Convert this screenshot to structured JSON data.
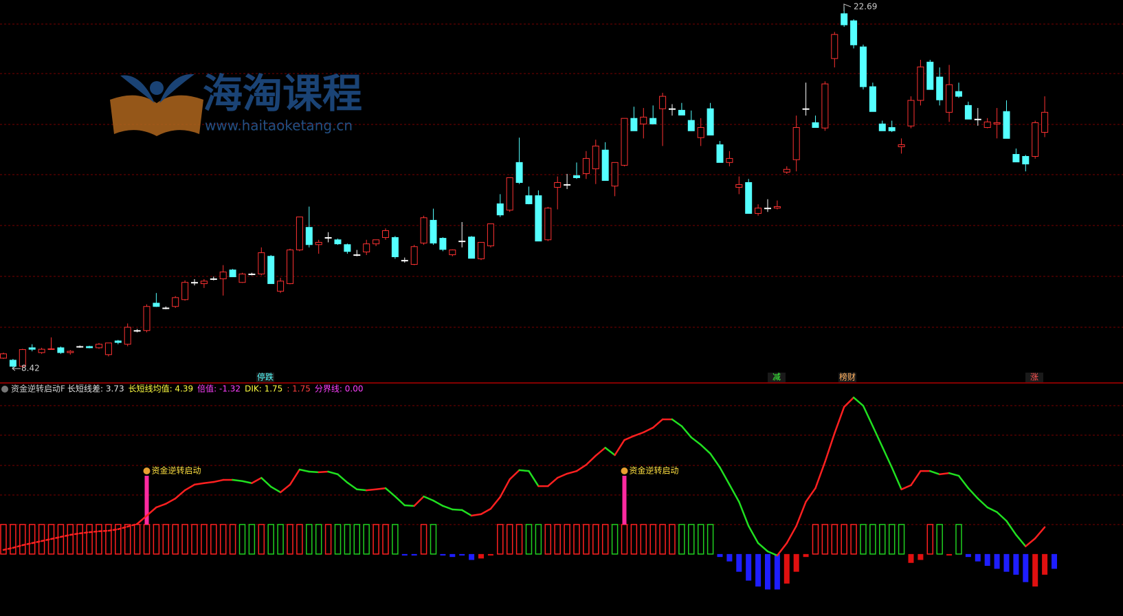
{
  "watermark": {
    "brand": "海淘课程",
    "url": "www.haitaoketang.cn"
  },
  "chart_data": [
    {
      "type": "candlestick",
      "ylim": [
        7.88,
        22.96
      ],
      "up_color": "#ff3232",
      "down_color": "#54ffff",
      "doji_color": "#ffffff",
      "high_label": 22.69,
      "low_label": 8.42,
      "tags": [
        {
          "text": "停跌",
          "color": "#54ffff"
        },
        {
          "text": "减",
          "color": "#3cff3c"
        },
        {
          "text": "榜财",
          "color": "#ffb060"
        },
        {
          "text": "涨",
          "color": "#ff5050"
        }
      ],
      "candles": [
        [
          8.83,
          9.05,
          8.8,
          9
        ],
        [
          8.75,
          8.8,
          8.42,
          8.51
        ],
        [
          8.51,
          9.2,
          8.45,
          9.17
        ],
        [
          9.24,
          9.38,
          9.1,
          9.18
        ],
        [
          9.05,
          9.24,
          9,
          9.18
        ],
        [
          9.18,
          9.65,
          9.18,
          9.2
        ],
        [
          9.24,
          9.29,
          9,
          9.05
        ],
        [
          9.05,
          9.15,
          8.97,
          9.1
        ],
        [
          9.29,
          9.33,
          9.24,
          9.29
        ],
        [
          9.29,
          9.32,
          9.22,
          9.24
        ],
        [
          9.24,
          9.43,
          9.2,
          9.38
        ],
        [
          8.97,
          9.43,
          8.9,
          9.43
        ],
        [
          9.51,
          9.55,
          9.38,
          9.45
        ],
        [
          9.38,
          10.2,
          9.3,
          10.05
        ],
        [
          9.92,
          9.98,
          9.85,
          9.92
        ],
        [
          9.92,
          10.95,
          9.85,
          10.87
        ],
        [
          11,
          11.4,
          10.85,
          10.87
        ],
        [
          10.81,
          10.87,
          10.76,
          10.81
        ],
        [
          10.87,
          11.28,
          10.81,
          11.22
        ],
        [
          11.14,
          11.9,
          11.1,
          11.82
        ],
        [
          11.82,
          11.95,
          11.7,
          11.82
        ],
        [
          11.77,
          11.95,
          11.6,
          11.87
        ],
        [
          11.96,
          12.05,
          11.9,
          11.96
        ],
        [
          11.96,
          12.5,
          11.3,
          12.23
        ],
        [
          12.31,
          12.35,
          12.04,
          12.04
        ],
        [
          11.82,
          12.2,
          11.8,
          12.15
        ],
        [
          12.15,
          12.2,
          12.1,
          12.15
        ],
        [
          12.15,
          13.2,
          12.1,
          12.99
        ],
        [
          12.85,
          12.9,
          11.77,
          11.77
        ],
        [
          11.47,
          12,
          11.4,
          11.87
        ],
        [
          11.77,
          13.15,
          11.75,
          13.1
        ],
        [
          13.1,
          14.4,
          13.05,
          14.4
        ],
        [
          13.99,
          14.81,
          13.2,
          13.31
        ],
        [
          13.31,
          13.5,
          12.95,
          13.4
        ],
        [
          13.59,
          13.8,
          13.4,
          13.59
        ],
        [
          13.5,
          13.55,
          13.3,
          13.34
        ],
        [
          13.31,
          13.35,
          12.95,
          13.04
        ],
        [
          12.91,
          13.1,
          12.85,
          12.91
        ],
        [
          13.02,
          13.5,
          12.9,
          13.34
        ],
        [
          13.34,
          13.5,
          13.25,
          13.5
        ],
        [
          13.59,
          13.95,
          13.5,
          13.86
        ],
        [
          13.59,
          13.65,
          12.75,
          12.83
        ],
        [
          12.69,
          12.8,
          12.6,
          12.69
        ],
        [
          12.53,
          13.3,
          12.5,
          13.23
        ],
        [
          13.37,
          14.45,
          13.3,
          14.37
        ],
        [
          14.27,
          14.73,
          13.3,
          13.37
        ],
        [
          13.56,
          13.6,
          13.05,
          13.12
        ],
        [
          12.91,
          13.12,
          12.85,
          13.1
        ],
        [
          13.45,
          14.2,
          13.2,
          13.45
        ],
        [
          13.61,
          13.65,
          12.77,
          12.77
        ],
        [
          12.75,
          13.4,
          12.7,
          13.4
        ],
        [
          13.26,
          14.13,
          13.2,
          14.13
        ],
        [
          14.92,
          15.3,
          14.4,
          14.48
        ],
        [
          14.67,
          15.95,
          14.6,
          15.95
        ],
        [
          16.55,
          17.53,
          15.7,
          15.76
        ],
        [
          15.24,
          15.6,
          14.9,
          14.92
        ],
        [
          15.24,
          15.45,
          13.45,
          13.45
        ],
        [
          13.5,
          14.8,
          13.45,
          14.75
        ],
        [
          15.57,
          16,
          14.7,
          15.76
        ],
        [
          15.68,
          16.1,
          15.5,
          15.68
        ],
        [
          16.03,
          16.55,
          15.9,
          15.95
        ],
        [
          16.11,
          17,
          15.9,
          16.71
        ],
        [
          16.3,
          17.45,
          15.7,
          17.2
        ],
        [
          17.04,
          17.35,
          15.84,
          15.84
        ],
        [
          15.62,
          16.55,
          15.22,
          16.55
        ],
        [
          16.44,
          18.29,
          16.4,
          18.29
        ],
        [
          18.29,
          18.75,
          17.8,
          17.8
        ],
        [
          18.07,
          18.7,
          17.5,
          18.34
        ],
        [
          18.29,
          18.8,
          18.07,
          18.07
        ],
        [
          18.67,
          19.3,
          17.2,
          19.16
        ],
        [
          18.67,
          18.85,
          18.4,
          18.67
        ],
        [
          18.61,
          18.9,
          18.42,
          18.42
        ],
        [
          18.21,
          18.6,
          17.8,
          17.8
        ],
        [
          17.53,
          18.3,
          17.2,
          17.93
        ],
        [
          18.67,
          18.9,
          17.63,
          17.63
        ],
        [
          17.25,
          17.4,
          16.55,
          16.55
        ],
        [
          16.55,
          17,
          16.4,
          16.71
        ],
        [
          15.57,
          16,
          15.3,
          15.68
        ],
        [
          15.76,
          15.9,
          14.54,
          14.54
        ],
        [
          14.54,
          14.9,
          14.45,
          14.75
        ],
        [
          14.75,
          15.1,
          14.6,
          14.75
        ],
        [
          14.75,
          15.05,
          14.7,
          14.81
        ],
        [
          16.17,
          16.4,
          16.1,
          16.28
        ],
        [
          16.66,
          18.4,
          16.2,
          17.93
        ],
        [
          18.67,
          19.7,
          18.4,
          18.67
        ],
        [
          18.12,
          18.4,
          17.93,
          17.93
        ],
        [
          17.91,
          19.75,
          17.8,
          19.65
        ],
        [
          20.65,
          21.7,
          20.3,
          21.6
        ],
        [
          22.42,
          22.69,
          21.9,
          21.98
        ],
        [
          22.14,
          22.2,
          21.05,
          21.19
        ],
        [
          21.11,
          21.2,
          19.43,
          19.54
        ],
        [
          19.54,
          19.7,
          18.56,
          18.56
        ],
        [
          18.07,
          18.2,
          17.8,
          17.8
        ],
        [
          17.93,
          18.2,
          17.75,
          17.8
        ],
        [
          17.17,
          17.5,
          16.9,
          17.25
        ],
        [
          17.99,
          19.16,
          17.9,
          19
        ],
        [
          19,
          20.6,
          18.8,
          20.32
        ],
        [
          20.51,
          20.6,
          19.43,
          19.43
        ],
        [
          19.92,
          20.3,
          18.8,
          19.02
        ],
        [
          18.53,
          20.4,
          18.15,
          19.62
        ],
        [
          19.35,
          19.7,
          19.1,
          19.16
        ],
        [
          18.8,
          18.95,
          18.26,
          18.26
        ],
        [
          18.26,
          18.7,
          18,
          18.26
        ],
        [
          17.93,
          18.3,
          17.9,
          18.15
        ],
        [
          18.07,
          18.7,
          17.5,
          18.12
        ],
        [
          18.56,
          19,
          17.5,
          17.5
        ],
        [
          16.87,
          17.1,
          16.57,
          16.57
        ],
        [
          16.79,
          16.85,
          16.2,
          16.49
        ],
        [
          16.79,
          18.2,
          16.7,
          18.12
        ],
        [
          17.74,
          19.16,
          17.55,
          18.53
        ]
      ]
    },
    {
      "type": "indicator",
      "title": "资金逆转启动F",
      "ylim": [
        -1.26,
        5.77
      ],
      "readouts": [
        {
          "text": "长短线差: 3.73",
          "color": "#e0e0e0"
        },
        {
          "text": "长短线均值: 4.39",
          "color": "#ffff40"
        },
        {
          "text": "倍值: -1.32",
          "color": "#ff40ff"
        },
        {
          "text": "DIK: 1.75",
          "color": "#ffff40"
        },
        {
          "text": ": 1.75",
          "color": "#ff4040"
        },
        {
          "text": "分界线: 0.00",
          "color": "#ff40ff"
        }
      ],
      "signal_labels": [
        "资金逆转启动",
        "资金逆转启动"
      ],
      "signal_color": "#ff2aa0",
      "line_up_color": "#ff2020",
      "line_down_color": "#20e020",
      "bar_up_color": "#ff2020",
      "bar_down_color": "#20d020",
      "bar_neg_color": "#1e1eff",
      "bar_neg_up_color": "#e01010",
      "line": [
        0.14,
        0.21,
        0.3,
        0.37,
        0.44,
        0.51,
        0.58,
        0.65,
        0.7,
        0.74,
        0.77,
        0.79,
        0.84,
        0.93,
        1.02,
        1.3,
        1.58,
        1.7,
        1.88,
        2.16,
        2.35,
        2.4,
        2.44,
        2.51,
        2.51,
        2.47,
        2.4,
        2.58,
        2.28,
        2.09,
        2.35,
        2.86,
        2.79,
        2.77,
        2.79,
        2.7,
        2.42,
        2.19,
        2.16,
        2.19,
        2.23,
        1.95,
        1.65,
        1.63,
        1.95,
        1.81,
        1.63,
        1.51,
        1.49,
        1.3,
        1.35,
        1.53,
        1.93,
        2.53,
        2.84,
        2.81,
        2.3,
        2.3,
        2.58,
        2.72,
        2.81,
        3.02,
        3.33,
        3.6,
        3.35,
        3.86,
        4,
        4.12,
        4.28,
        4.56,
        4.56,
        4.33,
        3.95,
        3.7,
        3.4,
        2.93,
        2.35,
        1.77,
        0.95,
        0.37,
        0.09,
        -0.05,
        0.37,
        0.95,
        1.77,
        2.23,
        3.12,
        4.09,
        4.98,
        5.3,
        5.02,
        4.33,
        3.63,
        2.93,
        2.19,
        2.33,
        2.81,
        2.81,
        2.7,
        2.74,
        2.65,
        2.23,
        1.88,
        1.58,
        1.42,
        1.12,
        0.65,
        0.26,
        0.53,
        0.91
      ],
      "bars": [
        1,
        1,
        1,
        1,
        1,
        1,
        1,
        1,
        1,
        1,
        1,
        1,
        1,
        1,
        1,
        1,
        1,
        1,
        1,
        1,
        1,
        1,
        1,
        1,
        1,
        1,
        1,
        1,
        1,
        1,
        1,
        1,
        1,
        1,
        1,
        1,
        1,
        1,
        1,
        1,
        1,
        1,
        -0.05,
        -0.05,
        1,
        1,
        -0.05,
        -0.1,
        -0.05,
        -0.2,
        -0.15,
        -0.05,
        1,
        1,
        1,
        1,
        1,
        1,
        1,
        1,
        1,
        1,
        1,
        1,
        1,
        1,
        1,
        1,
        1,
        1,
        1,
        1,
        1,
        1,
        1,
        -0.1,
        -0.25,
        -0.6,
        -0.9,
        -1.1,
        -1.2,
        -1.2,
        -1,
        -0.6,
        -0.1,
        1,
        1,
        1,
        1,
        1,
        1,
        1,
        1,
        1,
        1,
        -0.3,
        -0.2,
        1,
        1,
        -0.05,
        1,
        -0.1,
        -0.25,
        -0.4,
        -0.5,
        -0.6,
        -0.7,
        -0.95,
        -1.1,
        -0.7,
        -0.5
      ]
    }
  ]
}
